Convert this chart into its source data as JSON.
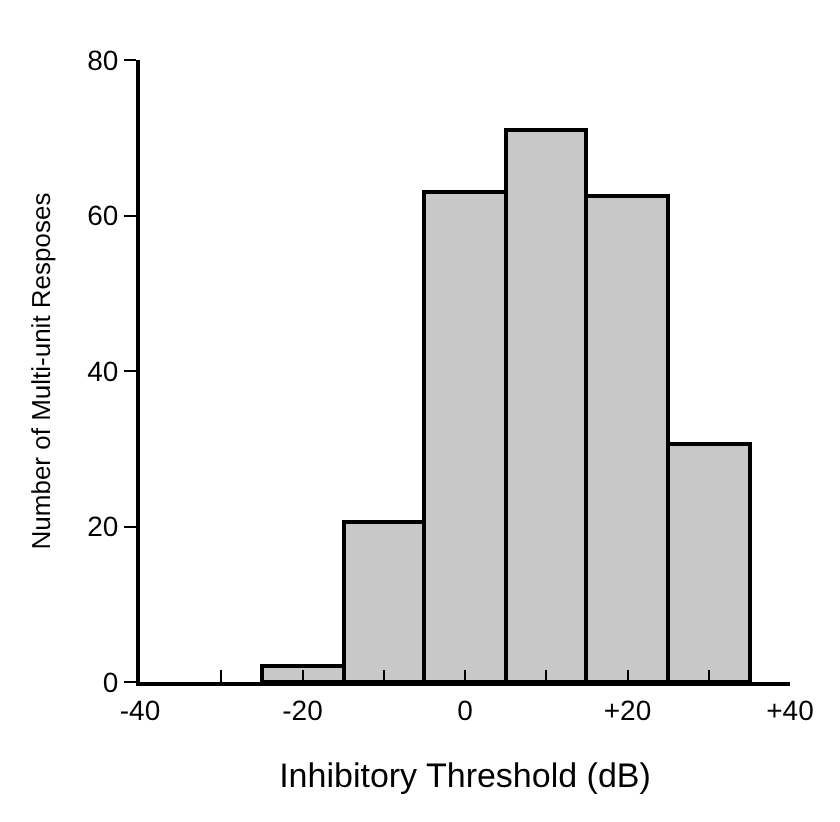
{
  "chart_data": {
    "type": "histogram",
    "xlabel": "Inhibitory Threshold (dB)",
    "ylabel": "Number of Multi-unit Resposes",
    "bins": [
      -25,
      -15,
      -5,
      5,
      15,
      25,
      35
    ],
    "values": [
      2,
      20.5,
      63,
      71,
      62.5,
      30.5
    ],
    "color": "#c8c8c8",
    "xlim": [
      -40,
      40
    ],
    "xticks": [
      -40,
      {
        "value": -30,
        "label": null
      },
      -20,
      {
        "value": -10,
        "label": null
      },
      0,
      {
        "value": 10,
        "label": null
      },
      {
        "value": 20,
        "label": "+20"
      },
      {
        "value": 30,
        "label": null
      },
      {
        "value": 40,
        "label": "+40"
      }
    ],
    "ylim": [
      0,
      80
    ],
    "yticks": [
      0,
      20,
      40,
      60,
      80
    ]
  }
}
